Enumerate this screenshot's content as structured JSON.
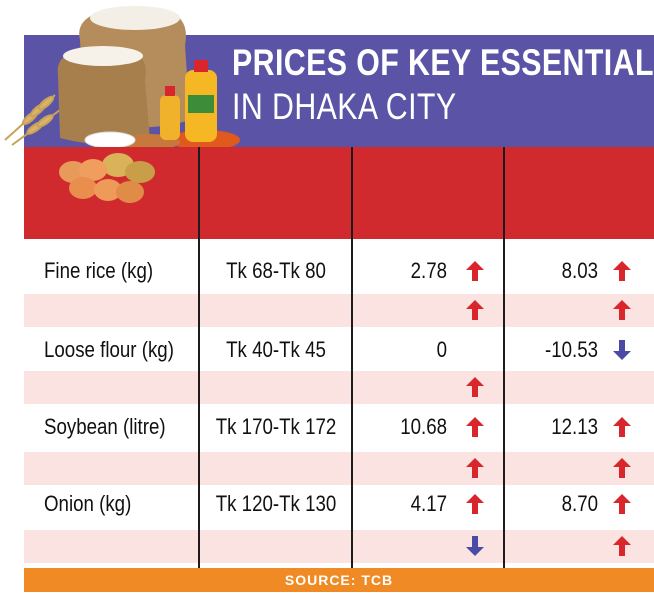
{
  "title": {
    "line1": "PRICES OF KEY ESSENTIALS",
    "line2": "IN DHAKA CITY"
  },
  "rows": [
    {
      "item": "Fine rice (kg)",
      "range": "Tk 68-Tk 80",
      "v1": "2.78",
      "v1_dir": "up",
      "v2": "8.03",
      "v2_dir": "up",
      "sub_v1_dir": "up",
      "sub_v2_dir": "up"
    },
    {
      "item": "Loose flour (kg)",
      "range": "Tk 40-Tk 45",
      "v1": "0",
      "v1_dir": "",
      "v2": "-10.53",
      "v2_dir": "down",
      "sub_v1_dir": "up",
      "sub_v2_dir": ""
    },
    {
      "item": "Soybean (litre)",
      "range": "Tk 170-Tk 172",
      "v1": "10.68",
      "v1_dir": "up",
      "v2": "12.13",
      "v2_dir": "up",
      "sub_v1_dir": "up",
      "sub_v2_dir": "up"
    },
    {
      "item": "Onion (kg)",
      "range": "Tk 120-Tk 130",
      "v1": "4.17",
      "v1_dir": "up",
      "v2": "8.70",
      "v2_dir": "up",
      "sub_v1_dir": "down",
      "sub_v2_dir": "up"
    }
  ],
  "footer": "SOURCE: TCB",
  "colors": {
    "banner": "#5b54a6",
    "header_red": "#d12a2e",
    "pink_row": "#fbe3e2",
    "footer": "#f08a24",
    "arrow_up": "#d8262c",
    "arrow_down": "#4b4aa6"
  },
  "icons": {
    "up": "arrow-up-icon",
    "down": "arrow-down-icon",
    "illustration": "groceries-illustration"
  }
}
